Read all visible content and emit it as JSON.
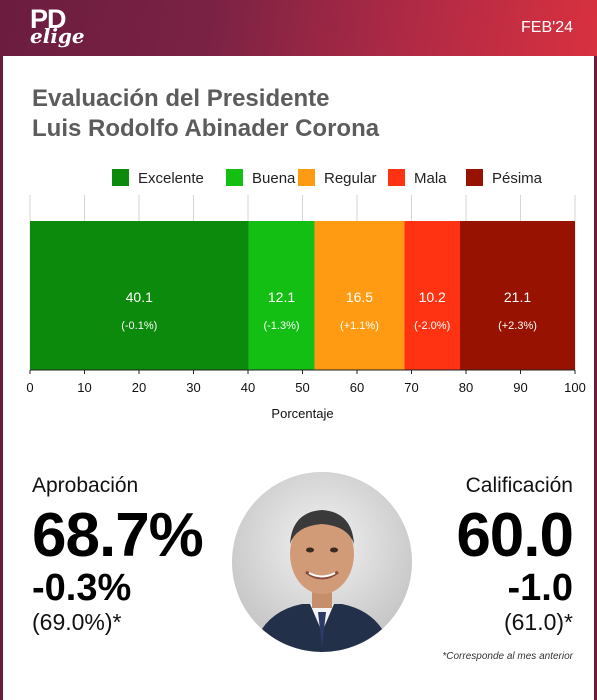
{
  "header": {
    "logo_top": "PD",
    "logo_bottom": "elige",
    "date": "FEB'24"
  },
  "title_line1": "Evaluación del Presidente",
  "title_line2": "Luis Rodolfo Abinader Corona",
  "chart_data": {
    "type": "bar",
    "orientation": "horizontal-stacked",
    "title": "Evaluación del Presidente Luis Rodolfo Abinader Corona",
    "xlabel": "Porcentaje",
    "xlim": [
      0,
      100
    ],
    "xticks": [
      0,
      10,
      20,
      30,
      40,
      50,
      60,
      70,
      80,
      90,
      100
    ],
    "grid": true,
    "legend_position": "top",
    "series": [
      {
        "name": "Excelente",
        "value": 40.1,
        "change": "(-0.1%)",
        "color": "#0b8a0b"
      },
      {
        "name": "Buena",
        "value": 12.1,
        "change": "(-1.3%)",
        "color": "#13bf13"
      },
      {
        "name": "Regular",
        "value": 16.5,
        "change": "(+1.1%)",
        "color": "#ff9b12"
      },
      {
        "name": "Mala",
        "value": 10.2,
        "change": "(-2.0%)",
        "color": "#ff3311"
      },
      {
        "name": "Pésima",
        "value": 21.1,
        "change": "(+2.3%)",
        "color": "#971200"
      }
    ]
  },
  "approval": {
    "label": "Aprobación",
    "value": "68.7%",
    "delta": "-0.3%",
    "previous": "(69.0%)*"
  },
  "rating": {
    "label": "Calificación",
    "value": "60.0",
    "delta": "-1.0",
    "previous": "(61.0)*"
  },
  "footnote": "*Corresponde al mes anterior"
}
